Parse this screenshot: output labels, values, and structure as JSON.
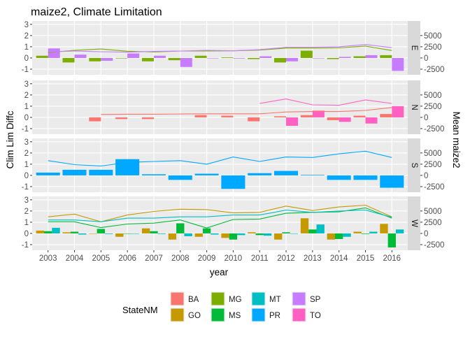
{
  "chart_data": {
    "type": "bar+line (faceted)",
    "title": "maize2, Climate Limitation",
    "xlabel": "year",
    "ylabel": "Clim Lim Diffc",
    "y2label": "Mean maize2",
    "legend": {
      "title": "StateNM",
      "position": "bottom"
    },
    "grid": true,
    "years": [
      2003,
      2004,
      2005,
      2006,
      2007,
      2008,
      2009,
      2010,
      2011,
      2012,
      2013,
      2014,
      2015,
      2016
    ],
    "y_ticks": [
      -1,
      0,
      1,
      2,
      3
    ],
    "y2_ticks": [
      -2500,
      0,
      2500,
      5000
    ],
    "ylim": [
      -1.5,
      3.3
    ],
    "y2lim": [
      -3750,
      8250
    ],
    "states": [
      {
        "name": "BA",
        "color": "#F8766D"
      },
      {
        "name": "GO",
        "color": "#C49A00"
      },
      {
        "name": "MG",
        "color": "#7CAE00"
      },
      {
        "name": "MS",
        "color": "#00BA38"
      },
      {
        "name": "MT",
        "color": "#00BFC4"
      },
      {
        "name": "PR",
        "color": "#00A9FF"
      },
      {
        "name": "SP",
        "color": "#C77CFF"
      },
      {
        "name": "TO",
        "color": "#FF61C3"
      }
    ],
    "panels": [
      {
        "name": "E",
        "states": [
          "MG",
          "SP"
        ],
        "bars": {
          "MG": [
            0.2,
            -0.4,
            -0.3,
            0.0,
            -0.3,
            -0.2,
            0.2,
            0.05,
            -0.1,
            -0.4,
            0.65,
            -0.1,
            0.15,
            0.25
          ],
          "SP": [
            0.85,
            0.3,
            -0.25,
            0.4,
            0.2,
            -0.8,
            0.0,
            -0.05,
            0.15,
            -0.3,
            0.0,
            0.1,
            0.25,
            -1.15
          ]
        },
        "lines": {
          "MG": [
            1200,
            1700,
            2000,
            1500,
            1350,
            1550,
            1550,
            1600,
            1750,
            2200,
            2200,
            2250,
            2650,
            1650
          ],
          "SP": [
            1350,
            1550,
            1400,
            1300,
            1450,
            1550,
            1700,
            1600,
            1850,
            2400,
            2400,
            2500,
            3000,
            2300
          ]
        }
      },
      {
        "name": "N",
        "states": [
          "BA",
          "TO"
        ],
        "bars": {
          "BA": [
            null,
            null,
            -0.35,
            -0.15,
            -0.15,
            null,
            0.2,
            0.15,
            -0.35,
            0.1,
            0.2,
            -0.25,
            0.15,
            0.3
          ],
          "TO": [
            null,
            null,
            null,
            null,
            null,
            null,
            null,
            null,
            null,
            -0.75,
            0.6,
            -0.4,
            -0.55,
            1.0
          ]
        },
        "lines": {
          "BA": [
            null,
            null,
            650,
            700,
            700,
            750,
            800,
            800,
            800,
            1200,
            1300,
            1300,
            1550,
            2200
          ],
          "TO": [
            null,
            null,
            null,
            null,
            null,
            null,
            null,
            null,
            3100,
            4100,
            2800,
            2700,
            3900,
            3100
          ]
        }
      },
      {
        "name": "S",
        "states": [
          "PR"
        ],
        "bars": {
          "PR": [
            0.25,
            0.5,
            0.5,
            1.45,
            0.1,
            -0.4,
            0.15,
            -1.2,
            0.2,
            0.4,
            0.05,
            -0.4,
            -0.4,
            -1.1
          ]
        },
        "lines": {
          "PR": [
            3300,
            2400,
            2100,
            2900,
            3100,
            3300,
            2500,
            4100,
            3100,
            4100,
            4000,
            4800,
            5400,
            4000
          ]
        }
      },
      {
        "name": "W",
        "states": [
          "GO",
          "MS",
          "MT"
        ],
        "bars": {
          "GO": [
            0.25,
            0.1,
            0.0,
            -0.3,
            0.45,
            -0.55,
            -0.3,
            -0.4,
            0.1,
            -0.55,
            1.35,
            -0.55,
            0.15,
            0.85
          ],
          "MS": [
            0.2,
            0.15,
            0.4,
            0.0,
            0.2,
            0.9,
            0.45,
            -0.55,
            -0.15,
            0.1,
            0.35,
            -0.5,
            -0.05,
            -1.25
          ],
          "MT": [
            0.5,
            -0.1,
            -0.05,
            0.0,
            -0.05,
            -0.25,
            -0.1,
            -0.15,
            -0.2,
            0.0,
            0.8,
            -0.3,
            0.15,
            0.35
          ]
        },
        "lines": {
          "GO": [
            3700,
            4300,
            2600,
            4100,
            4900,
            5400,
            5300,
            4600,
            4700,
            6100,
            5100,
            5900,
            6300,
            3700
          ],
          "MS": [
            2600,
            2600,
            1300,
            2100,
            2300,
            3000,
            1200,
            3100,
            3200,
            4500,
            4700,
            4800,
            5700,
            3400
          ],
          "MT": [
            3000,
            3000,
            2600,
            3400,
            3400,
            3700,
            3700,
            4100,
            4100,
            5200,
            4700,
            5000,
            5200,
            3600
          ]
        }
      }
    ]
  }
}
